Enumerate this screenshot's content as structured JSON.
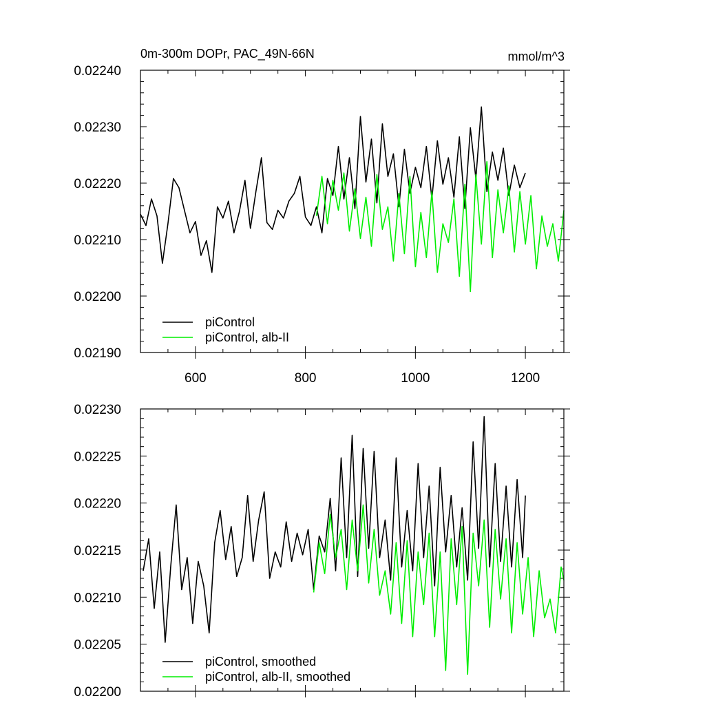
{
  "figure": {
    "title": "0m-300m DOPr, PAC_49N-66N",
    "units": "mmol/m^3"
  },
  "colors": {
    "picontrol": "#000000",
    "alb_ii": "#00ee00"
  },
  "chart_data": [
    {
      "type": "line",
      "title": "0m-300m DOPr, PAC_49N-66N",
      "units_label": "mmol/m^3",
      "xlabel": "",
      "ylabel": "",
      "xlim": [
        500,
        1270
      ],
      "ylim": [
        0.0219,
        0.0224
      ],
      "xticks": [
        600,
        800,
        1000,
        1200
      ],
      "xtick_labels": [
        "600",
        "800",
        "1000",
        "1200"
      ],
      "yticks": [
        0.0219,
        0.022,
        0.0221,
        0.0222,
        0.0223,
        0.0224
      ],
      "ytick_labels": [
        "0.02190",
        "0.02200",
        "0.02210",
        "0.02220",
        "0.02230",
        "0.02240"
      ],
      "legend": {
        "placement": "bottom-left",
        "entries": [
          "piControl",
          "piControl, alb-II"
        ]
      },
      "series": [
        {
          "name": "piControl",
          "color": "#000000",
          "x": [
            500,
            510,
            520,
            530,
            540,
            550,
            560,
            570,
            580,
            590,
            600,
            610,
            620,
            630,
            640,
            650,
            660,
            670,
            680,
            690,
            700,
            710,
            720,
            730,
            740,
            750,
            760,
            770,
            780,
            790,
            800,
            810,
            820,
            830,
            840,
            850,
            860,
            870,
            880,
            890,
            900,
            910,
            920,
            930,
            940,
            950,
            960,
            970,
            980,
            990,
            1000,
            1010,
            1020,
            1030,
            1040,
            1050,
            1060,
            1070,
            1080,
            1090,
            1100,
            1110,
            1120,
            1130,
            1140,
            1150,
            1160,
            1170,
            1180,
            1190,
            1200
          ],
          "values": [
            0.022145,
            0.022125,
            0.022172,
            0.022142,
            0.022058,
            0.022128,
            0.022208,
            0.022192,
            0.022152,
            0.022112,
            0.022132,
            0.022072,
            0.022098,
            0.022042,
            0.022158,
            0.022138,
            0.022168,
            0.022112,
            0.02215,
            0.022205,
            0.02212,
            0.022185,
            0.022245,
            0.02213,
            0.022118,
            0.022152,
            0.022138,
            0.022168,
            0.022182,
            0.022212,
            0.02214,
            0.022125,
            0.022158,
            0.022112,
            0.022208,
            0.022178,
            0.022265,
            0.022172,
            0.022245,
            0.022155,
            0.022318,
            0.022202,
            0.022278,
            0.022165,
            0.022305,
            0.022212,
            0.022252,
            0.022158,
            0.02226,
            0.022182,
            0.022228,
            0.022192,
            0.022265,
            0.022172,
            0.022275,
            0.022198,
            0.022245,
            0.022175,
            0.022282,
            0.022155,
            0.022298,
            0.022208,
            0.022335,
            0.022185,
            0.022255,
            0.022205,
            0.022262,
            0.022178,
            0.022232,
            0.022192,
            0.022218
          ]
        },
        {
          "name": "piControl, alb-II",
          "color": "#00ee00",
          "x": [
            820,
            830,
            840,
            850,
            860,
            870,
            880,
            890,
            900,
            910,
            920,
            930,
            940,
            950,
            960,
            970,
            980,
            990,
            1000,
            1010,
            1020,
            1030,
            1040,
            1050,
            1060,
            1070,
            1080,
            1090,
            1100,
            1110,
            1120,
            1130,
            1140,
            1150,
            1160,
            1170,
            1180,
            1190,
            1200,
            1210,
            1220,
            1230,
            1240,
            1250,
            1260,
            1270
          ],
          "values": [
            0.022142,
            0.022212,
            0.022128,
            0.022205,
            0.022152,
            0.022218,
            0.022115,
            0.02219,
            0.022102,
            0.022175,
            0.022088,
            0.022215,
            0.022118,
            0.022158,
            0.022062,
            0.022182,
            0.022075,
            0.022212,
            0.022052,
            0.022148,
            0.022068,
            0.022185,
            0.022042,
            0.022128,
            0.022095,
            0.022172,
            0.022035,
            0.022198,
            0.022008,
            0.022215,
            0.022092,
            0.022238,
            0.022068,
            0.022188,
            0.022112,
            0.022195,
            0.022078,
            0.022185,
            0.022092,
            0.022178,
            0.022048,
            0.022142,
            0.022088,
            0.022128,
            0.022062,
            0.022152
          ]
        }
      ]
    },
    {
      "type": "line",
      "title": "",
      "xlabel": "",
      "ylabel": "",
      "xlim": [
        500,
        1270
      ],
      "ylim": [
        0.022,
        0.0223
      ],
      "xticks": [
        600,
        800,
        1000,
        1200
      ],
      "xtick_labels": [],
      "yticks": [
        0.022,
        0.02205,
        0.0221,
        0.02215,
        0.0222,
        0.02225,
        0.0223
      ],
      "ytick_labels": [
        "0.02200",
        "0.02205",
        "0.02210",
        "0.02215",
        "0.02220",
        "0.02225",
        "0.02230"
      ],
      "legend": {
        "placement": "bottom-left",
        "entries": [
          "piControl, smoothed",
          "piControl, alb-II, smoothed"
        ]
      },
      "series": [
        {
          "name": "piControl, smoothed",
          "color": "#000000",
          "x": [
            505,
            515,
            525,
            535,
            545,
            555,
            565,
            575,
            585,
            595,
            605,
            615,
            625,
            635,
            645,
            655,
            665,
            675,
            685,
            695,
            705,
            715,
            725,
            735,
            745,
            755,
            765,
            775,
            785,
            795,
            805,
            815,
            825,
            835,
            845,
            855,
            865,
            875,
            885,
            895,
            905,
            915,
            925,
            935,
            945,
            955,
            965,
            975,
            985,
            995,
            1005,
            1015,
            1025,
            1035,
            1045,
            1055,
            1065,
            1075,
            1085,
            1095,
            1105,
            1115,
            1125,
            1135,
            1145,
            1155,
            1165,
            1175,
            1185,
            1195,
            1200
          ],
          "values": [
            0.022128,
            0.022162,
            0.022088,
            0.022148,
            0.022052,
            0.022132,
            0.022198,
            0.022108,
            0.022142,
            0.022072,
            0.022138,
            0.022112,
            0.022062,
            0.022158,
            0.022192,
            0.02214,
            0.022175,
            0.022122,
            0.022142,
            0.022208,
            0.022138,
            0.022182,
            0.022212,
            0.02212,
            0.022148,
            0.022132,
            0.02218,
            0.022138,
            0.022168,
            0.022145,
            0.022172,
            0.022108,
            0.022165,
            0.022148,
            0.022205,
            0.022128,
            0.022248,
            0.022142,
            0.022272,
            0.022122,
            0.022258,
            0.022152,
            0.022255,
            0.022142,
            0.022182,
            0.022118,
            0.022248,
            0.022132,
            0.022192,
            0.022128,
            0.022242,
            0.022142,
            0.022218,
            0.022112,
            0.022238,
            0.022148,
            0.022208,
            0.022132,
            0.022195,
            0.022118,
            0.022265,
            0.022152,
            0.022292,
            0.022132,
            0.022242,
            0.022138,
            0.022218,
            0.022132,
            0.022225,
            0.022142,
            0.022208
          ]
        },
        {
          "name": "piControl, alb-II, smoothed",
          "color": "#00ee00",
          "x": [
            815,
            825,
            835,
            845,
            855,
            865,
            875,
            885,
            895,
            905,
            915,
            925,
            935,
            945,
            955,
            965,
            975,
            985,
            995,
            1005,
            1015,
            1025,
            1035,
            1045,
            1055,
            1065,
            1075,
            1085,
            1095,
            1105,
            1115,
            1125,
            1135,
            1145,
            1155,
            1165,
            1175,
            1185,
            1195,
            1205,
            1215,
            1225,
            1235,
            1245,
            1255,
            1265,
            1270
          ],
          "values": [
            0.022105,
            0.022158,
            0.022125,
            0.022188,
            0.022142,
            0.022172,
            0.022108,
            0.022182,
            0.022128,
            0.022198,
            0.022115,
            0.022172,
            0.022102,
            0.022128,
            0.022082,
            0.022158,
            0.022072,
            0.02216,
            0.022058,
            0.022148,
            0.022092,
            0.022168,
            0.022058,
            0.022148,
            0.022022,
            0.022162,
            0.022092,
            0.022175,
            0.022018,
            0.022168,
            0.022112,
            0.022182,
            0.022068,
            0.022172,
            0.022098,
            0.022162,
            0.022062,
            0.022158,
            0.022082,
            0.022142,
            0.022058,
            0.022128,
            0.022078,
            0.022098,
            0.022062,
            0.022132,
            0.022118
          ]
        }
      ]
    }
  ]
}
